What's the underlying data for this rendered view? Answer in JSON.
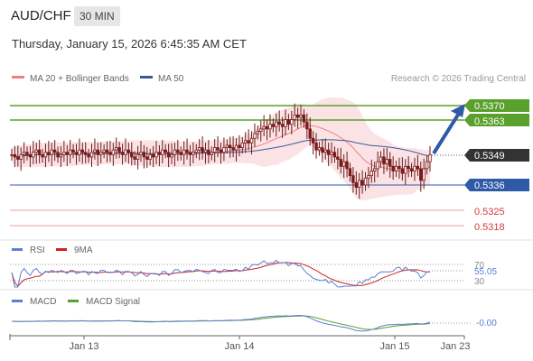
{
  "header": {
    "pair": "AUD/CHF",
    "timeframe": "30 MIN",
    "datetime": "Thursday, January 15, 2026 6:45:35 AM CET"
  },
  "legend": {
    "ma20_bb": "MA 20 + Bollinger Bands",
    "ma50": "MA 50",
    "credit": "Research © 2026 Trading Central"
  },
  "colors": {
    "resistance": "#5aa02c",
    "support": "#2e5aa8",
    "ma20": "#f08080",
    "ma50": "#3a5a9a",
    "band": "#fadadd",
    "lower_levels": "#e8a0a0",
    "current": "#333333",
    "arrow": "#2e5aa8",
    "rsi": "#5b7fd1",
    "rsi_ma": "#cc2222",
    "macd": "#5b7fd1",
    "macd_signal": "#5aa02c",
    "candle_up": "#7a1a1a",
    "candle_down": "#7a1a1a"
  },
  "levels": {
    "r1": "0.5370",
    "r2": "0.5363",
    "current": "0.5349",
    "s1": "0.5336",
    "l1": "0.5325",
    "l2": "0.5318"
  },
  "rsi_panel": {
    "label_rsi": "RSI",
    "label_ma": "9MA",
    "tick_70": "70",
    "tick_30": "30",
    "value": "55.05"
  },
  "macd_panel": {
    "label_macd": "MACD",
    "label_signal": "MACD Signal",
    "value": "-0.00"
  },
  "chart_data": {
    "type": "candlestick",
    "title": "AUD/CHF",
    "timeframe": "30 MIN",
    "x_ticks": [
      "Jan 13",
      "Jan 14",
      "Jan 15",
      "Jan 23"
    ],
    "y_range": [
      0.5313,
      0.5376
    ],
    "levels": [
      0.537,
      0.5363,
      0.5349,
      0.5336,
      0.5325,
      0.5318
    ],
    "close_approx": [
      0.5349,
      0.5348,
      0.5347,
      0.5349,
      0.535,
      0.5349,
      0.5348,
      0.535,
      0.5351,
      0.5349,
      0.5348,
      0.535,
      0.5349,
      0.5351,
      0.535,
      0.5348,
      0.5349,
      0.535,
      0.5349,
      0.5351,
      0.535,
      0.5349,
      0.5351,
      0.535,
      0.5349,
      0.5348,
      0.535,
      0.5351,
      0.5349,
      0.535,
      0.5351,
      0.535,
      0.5349,
      0.5351,
      0.5352,
      0.535,
      0.5349,
      0.5351,
      0.535,
      0.5348,
      0.5347,
      0.5349,
      0.535,
      0.5348,
      0.5347,
      0.5349,
      0.5348,
      0.535,
      0.5349,
      0.5351,
      0.535,
      0.5348,
      0.5349,
      0.5351,
      0.535,
      0.5349,
      0.5351,
      0.535,
      0.5349,
      0.535,
      0.5351,
      0.5352,
      0.535,
      0.5351,
      0.5349,
      0.535,
      0.5352,
      0.5351,
      0.535,
      0.5352,
      0.5353,
      0.5352,
      0.5351,
      0.5353,
      0.5352,
      0.5354,
      0.5355,
      0.5354,
      0.5356,
      0.5358,
      0.5359,
      0.536,
      0.5361,
      0.536,
      0.5362,
      0.5361,
      0.5363,
      0.5362,
      0.5361,
      0.5364,
      0.5362,
      0.5364,
      0.5366,
      0.5365,
      0.5366,
      0.5363,
      0.536,
      0.5356,
      0.5354,
      0.5351,
      0.5352,
      0.535,
      0.5351,
      0.5349,
      0.535,
      0.5348,
      0.5347,
      0.5344,
      0.5346,
      0.5343,
      0.534,
      0.5337,
      0.5335,
      0.5338,
      0.5336,
      0.5339,
      0.534,
      0.5342,
      0.5343,
      0.5346,
      0.5348,
      0.5345,
      0.5347,
      0.5344,
      0.5342,
      0.5344,
      0.5343,
      0.5341,
      0.5344,
      0.5343,
      0.5342,
      0.5344,
      0.5343,
      0.5338,
      0.5343,
      0.5346,
      0.5349
    ],
    "rsi_value": 55.05,
    "macd_value": -0.0
  }
}
